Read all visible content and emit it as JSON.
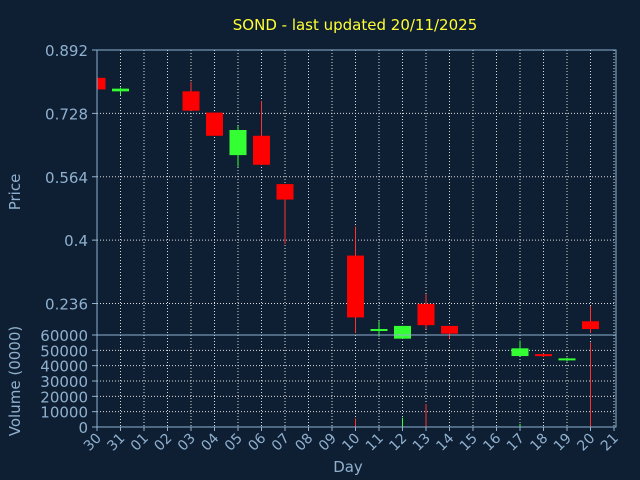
{
  "chart_data": {
    "type": "candlestick",
    "title": "SOND - last updated 20/11/2025",
    "price_panel": {
      "ylabel": "Price",
      "ylim": [
        0.1545,
        0.892
      ],
      "yticks": [
        0.892,
        0.728,
        0.564,
        0.4,
        0.236
      ],
      "ytick_labels": [
        "0.892",
        "0.728",
        "0.564",
        "0.4",
        "0.236"
      ]
    },
    "volume_panel": {
      "ylabel": "Volume (0000)",
      "ylim": [
        0,
        60000
      ],
      "yticks": [
        60000,
        50000,
        40000,
        30000,
        20000,
        10000,
        0
      ],
      "ytick_labels": [
        "60000",
        "50000",
        "40000",
        "30000",
        "20000",
        "10000",
        "0"
      ]
    },
    "xlabel": "Day",
    "grid": true,
    "x_ticks": [
      "30",
      "31",
      "01",
      "02",
      "03",
      "04",
      "05",
      "06",
      "07",
      "08",
      "09",
      "10",
      "11",
      "12",
      "13",
      "14",
      "15",
      "16",
      "17",
      "18",
      "19",
      "20",
      "21"
    ],
    "candles": [
      {
        "day": "30",
        "open": 0.82,
        "close": 0.79,
        "high": 0.82,
        "low": 0.79
      },
      {
        "day": "31",
        "open": 0.785,
        "close": 0.792,
        "high": 0.795,
        "low": 0.775
      },
      {
        "day": "03",
        "open": 0.785,
        "close": 0.735,
        "high": 0.81,
        "low": 0.735
      },
      {
        "day": "04",
        "open": 0.73,
        "close": 0.67,
        "high": 0.73,
        "low": 0.67
      },
      {
        "day": "05",
        "open": 0.62,
        "close": 0.685,
        "high": 0.695,
        "low": 0.59
      },
      {
        "day": "06",
        "open": 0.67,
        "close": 0.595,
        "high": 0.76,
        "low": 0.595
      },
      {
        "day": "07",
        "open": 0.545,
        "close": 0.505,
        "high": 0.545,
        "low": 0.39
      },
      {
        "day": "10",
        "open": 0.36,
        "close": 0.2,
        "high": 0.435,
        "low": 0.16
      },
      {
        "day": "11",
        "open": 0.165,
        "close": 0.17,
        "high": 0.19,
        "low": 0.15
      },
      {
        "day": "12",
        "open": 0.145,
        "close": 0.178,
        "high": 0.178,
        "low": 0.145
      },
      {
        "day": "13",
        "open": 0.235,
        "close": 0.18,
        "high": 0.26,
        "low": 0.17
      },
      {
        "day": "14",
        "open": 0.178,
        "close": 0.158,
        "high": 0.178,
        "low": 0.145
      },
      {
        "day": "17",
        "open": 0.1,
        "close": 0.12,
        "high": 0.14,
        "low": 0.1
      },
      {
        "day": "18",
        "open": 0.105,
        "close": 0.1,
        "high": 0.107,
        "low": 0.098
      },
      {
        "day": "19",
        "open": 0.09,
        "close": 0.094,
        "high": 0.096,
        "low": 0.086
      },
      {
        "day": "20",
        "open": 0.19,
        "close": 0.17,
        "high": 0.23,
        "low": 0.16
      }
    ],
    "volume": [
      {
        "day": "10",
        "value": 5500,
        "color": "#ff3030"
      },
      {
        "day": "12",
        "value": 6000,
        "color": "#33ff33"
      },
      {
        "day": "13",
        "value": 15000,
        "color": "#ff3030"
      },
      {
        "day": "17",
        "value": 2000,
        "color": "#33ff33"
      },
      {
        "day": "20",
        "value": 55000,
        "color": "#ff3030"
      }
    ],
    "colors": {
      "background": "#0f1f33",
      "up": "#33ff33",
      "down": "#ff0000",
      "grid": "#dddddd",
      "axis_text": "#8fb1cf",
      "title": "#ffff33"
    }
  }
}
